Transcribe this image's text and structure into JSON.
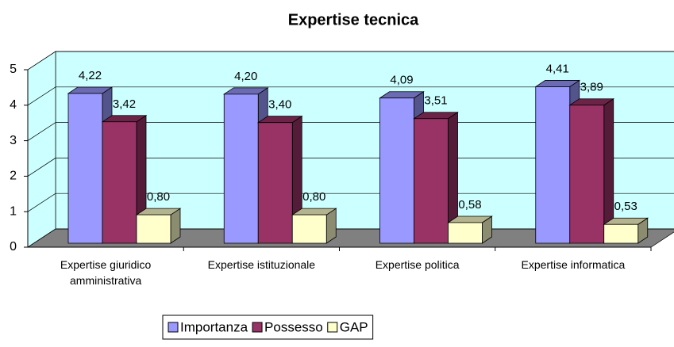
{
  "chart_data": {
    "type": "bar3d",
    "title": "Expertise tecnica",
    "categories": [
      "Expertise giuridico amministrativa",
      "Expertise istituzionale",
      "Expertise politica",
      "Expertise informatica"
    ],
    "series": [
      {
        "name": "Importanza",
        "color": "#9999ff",
        "values": [
          4.22,
          4.2,
          4.09,
          4.41
        ],
        "value_labels": [
          "4,22",
          "4,20",
          "4,09",
          "4,41"
        ]
      },
      {
        "name": "Possesso",
        "color": "#993366",
        "values": [
          3.42,
          3.4,
          3.51,
          3.89
        ],
        "value_labels": [
          "3,42",
          "3,40",
          "3,51",
          "3,89"
        ]
      },
      {
        "name": "GAP",
        "color": "#ffffcc",
        "values": [
          0.8,
          0.8,
          0.58,
          0.53
        ],
        "value_labels": [
          "0,80",
          "0,80",
          "0,58",
          "0,53"
        ]
      }
    ],
    "ylim": [
      0,
      5
    ],
    "yticks": [
      0,
      1,
      2,
      3,
      4,
      5
    ],
    "grid": true,
    "legend": "bottom",
    "wall_color": "#ccffff",
    "floor_color": "#808080"
  }
}
